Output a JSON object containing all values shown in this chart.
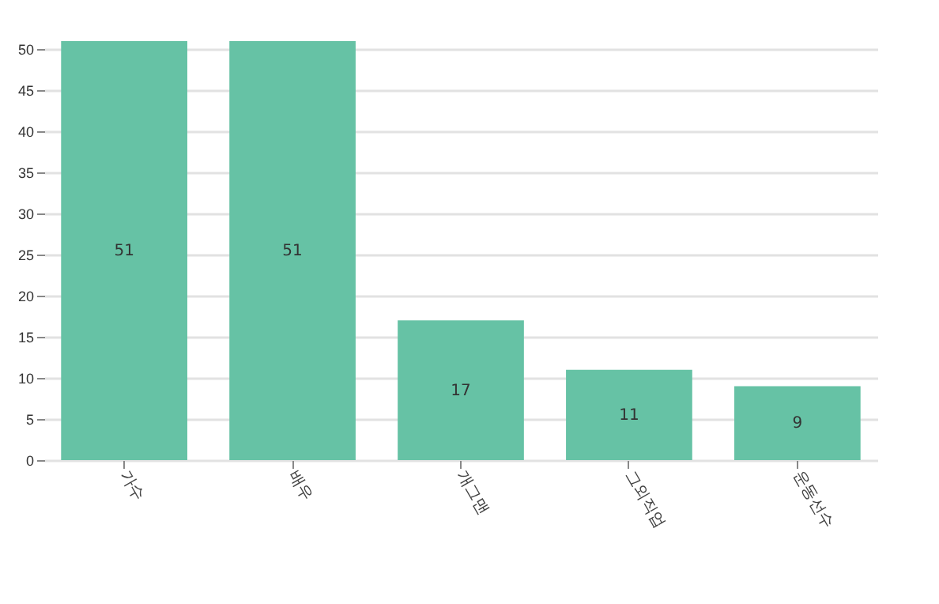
{
  "chart_data": {
    "type": "bar",
    "categories": [
      "가수",
      "배우",
      "개그맨",
      "그외직업",
      "운동선수"
    ],
    "values": [
      51,
      51,
      17,
      11,
      9
    ],
    "color": "#66c2a5",
    "ylim": [
      0,
      51
    ],
    "yticks": [
      0,
      5,
      10,
      15,
      20,
      25,
      30,
      35,
      40,
      45,
      50
    ],
    "grid": "y",
    "data_labels": true
  }
}
